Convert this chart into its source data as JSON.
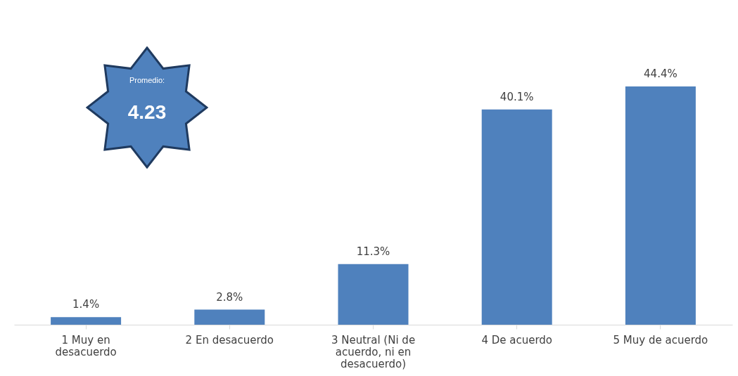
{
  "chart_data": {
    "type": "bar",
    "categories": [
      "1 Muy en desacuerdo",
      "2 En desacuerdo",
      "3 Neutral (Ni de acuerdo, ni en desacuerdo)",
      "4 De acuerdo",
      "5 Muy de acuerdo"
    ],
    "values": [
      1.4,
      2.8,
      11.3,
      40.1,
      44.4
    ],
    "value_labels": [
      "1.4%",
      "2.8%",
      "11.3%",
      "40.1%",
      "44.4%"
    ],
    "color": "#4f81bd",
    "annotations": [
      "Promedio:",
      "4.23"
    ]
  }
}
